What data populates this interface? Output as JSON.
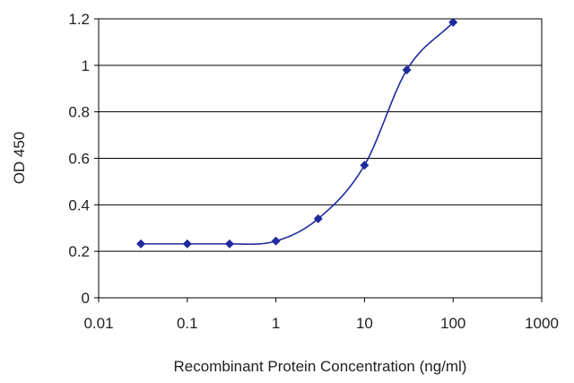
{
  "chart_data": {
    "type": "scatter",
    "title": "",
    "xlabel": "Recombinant Protein Concentration (ng/ml)",
    "ylabel": "OD 450",
    "x_scale": "log",
    "xlim": [
      0.01,
      1000
    ],
    "ylim": [
      0,
      1.2
    ],
    "grid": "horizontal",
    "legend": "none",
    "x_ticks": [
      "0.01",
      "0.1",
      "1",
      "10",
      "100",
      "1000"
    ],
    "y_ticks": [
      "0",
      "0.2",
      "0.4",
      "0.6",
      "0.8",
      "1",
      "1.2"
    ],
    "series": [
      {
        "x": [
          0.03,
          0.1,
          0.3,
          1,
          3,
          10,
          30,
          100
        ],
        "y": [
          0.232,
          0.232,
          0.232,
          0.244,
          0.34,
          0.57,
          0.98,
          1.185
        ],
        "color": "#1f2a9e",
        "fit": "sigmoidal"
      }
    ]
  }
}
